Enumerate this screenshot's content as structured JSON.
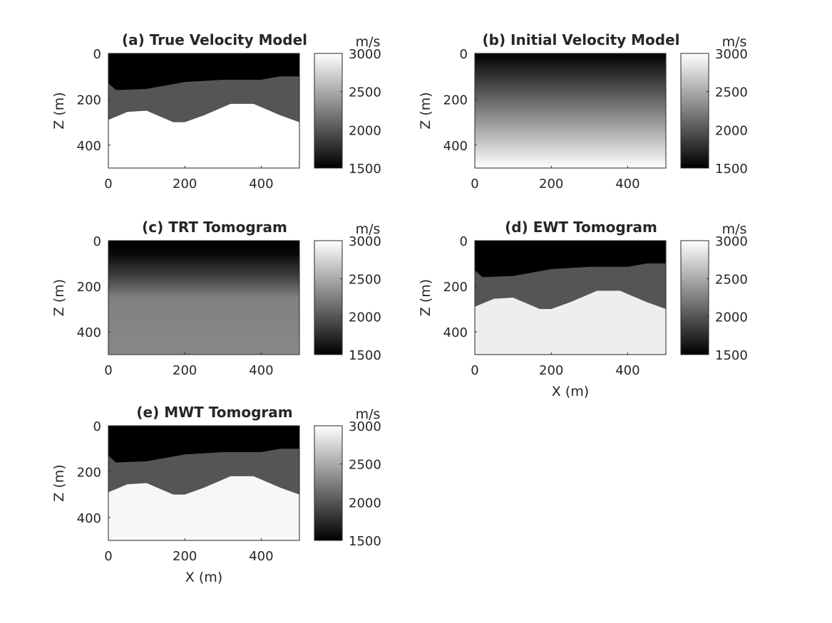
{
  "chart_data": [
    {
      "type": "heatmap",
      "panel": "a",
      "title": "(a) True Velocity Model",
      "xlabel": "",
      "ylabel": "Z (m)",
      "xlim": [
        0,
        500
      ],
      "ylim": [
        0,
        500
      ],
      "xticks": [
        0,
        200,
        400
      ],
      "yticks": [
        0,
        200,
        400
      ],
      "colorbar": {
        "label": "m/s",
        "range": [
          1500,
          3000
        ],
        "ticks": [
          1500,
          2000,
          2500,
          3000
        ],
        "colormap": "gray"
      },
      "model": "layered",
      "layers": [
        {
          "top_velocity": 1500
        },
        {
          "velocity": 2000,
          "boundary_x": [
            0,
            20,
            100,
            200,
            300,
            400,
            450,
            500
          ],
          "boundary_z": [
            130,
            160,
            155,
            125,
            115,
            115,
            100,
            100
          ]
        },
        {
          "velocity": 3000,
          "boundary_x": [
            0,
            50,
            100,
            170,
            200,
            250,
            320,
            380,
            450,
            500
          ],
          "boundary_z": [
            290,
            255,
            250,
            300,
            300,
            270,
            220,
            220,
            270,
            300
          ]
        }
      ]
    },
    {
      "type": "heatmap",
      "panel": "b",
      "title": "(b) Initial Velocity Model",
      "xlabel": "",
      "ylabel": "Z (m)",
      "xlim": [
        0,
        500
      ],
      "ylim": [
        0,
        500
      ],
      "xticks": [
        0,
        200,
        400
      ],
      "yticks": [
        0,
        200,
        400
      ],
      "colorbar": {
        "label": "m/s",
        "range": [
          1500,
          3000
        ],
        "ticks": [
          1500,
          2000,
          2500,
          3000
        ],
        "colormap": "gray"
      },
      "model": "gradient",
      "velocity_top": 1500,
      "velocity_bottom": 3000
    },
    {
      "type": "heatmap",
      "panel": "c",
      "title": "(c) TRT Tomogram",
      "xlabel": "",
      "ylabel": "Z (m)",
      "xlim": [
        0,
        500
      ],
      "ylim": [
        0,
        500
      ],
      "xticks": [
        0,
        200,
        400
      ],
      "yticks": [
        0,
        200,
        400
      ],
      "colorbar": {
        "label": "m/s",
        "range": [
          1500,
          3000
        ],
        "ticks": [
          1500,
          2000,
          2500,
          3000
        ],
        "colormap": "gray"
      },
      "model": "smooth",
      "depth_profile_z": [
        0,
        60,
        100,
        150,
        200,
        250,
        500
      ],
      "depth_profile_v": [
        1500,
        1550,
        1700,
        1850,
        2050,
        2250,
        2300
      ]
    },
    {
      "type": "heatmap",
      "panel": "d",
      "title": "(d) EWT Tomogram",
      "xlabel": "X (m)",
      "ylabel": "Z (m)",
      "xlim": [
        0,
        500
      ],
      "ylim": [
        0,
        500
      ],
      "xticks": [
        0,
        200,
        400
      ],
      "yticks": [
        0,
        200,
        400
      ],
      "colorbar": {
        "label": "m/s",
        "range": [
          1500,
          3000
        ],
        "ticks": [
          1500,
          2000,
          2500,
          3000
        ],
        "colormap": "gray"
      },
      "model": "layered",
      "layers": [
        {
          "top_velocity": 1500
        },
        {
          "velocity": 2000,
          "boundary_x": [
            0,
            20,
            100,
            200,
            300,
            400,
            450,
            500
          ],
          "boundary_z": [
            130,
            160,
            155,
            125,
            115,
            115,
            100,
            100
          ]
        },
        {
          "velocity": 2900,
          "boundary_x": [
            0,
            50,
            100,
            170,
            200,
            250,
            320,
            380,
            450,
            500
          ],
          "boundary_z": [
            290,
            255,
            250,
            300,
            300,
            270,
            220,
            220,
            270,
            300
          ]
        }
      ]
    },
    {
      "type": "heatmap",
      "panel": "e",
      "title": "(e) MWT Tomogram",
      "xlabel": "X (m)",
      "ylabel": "Z (m)",
      "xlim": [
        0,
        500
      ],
      "ylim": [
        0,
        500
      ],
      "xticks": [
        0,
        200,
        400
      ],
      "yticks": [
        0,
        200,
        400
      ],
      "colorbar": {
        "label": "m/s",
        "range": [
          1500,
          3000
        ],
        "ticks": [
          1500,
          2000,
          2500,
          3000
        ],
        "colormap": "gray"
      },
      "model": "layered",
      "layers": [
        {
          "top_velocity": 1500
        },
        {
          "velocity": 2000,
          "boundary_x": [
            0,
            20,
            100,
            200,
            300,
            400,
            450,
            500
          ],
          "boundary_z": [
            130,
            160,
            155,
            125,
            115,
            115,
            100,
            100
          ]
        },
        {
          "velocity": 2950,
          "boundary_x": [
            0,
            50,
            100,
            170,
            200,
            250,
            320,
            380,
            450,
            500
          ],
          "boundary_z": [
            290,
            255,
            250,
            300,
            300,
            270,
            220,
            220,
            270,
            300
          ]
        }
      ]
    }
  ]
}
